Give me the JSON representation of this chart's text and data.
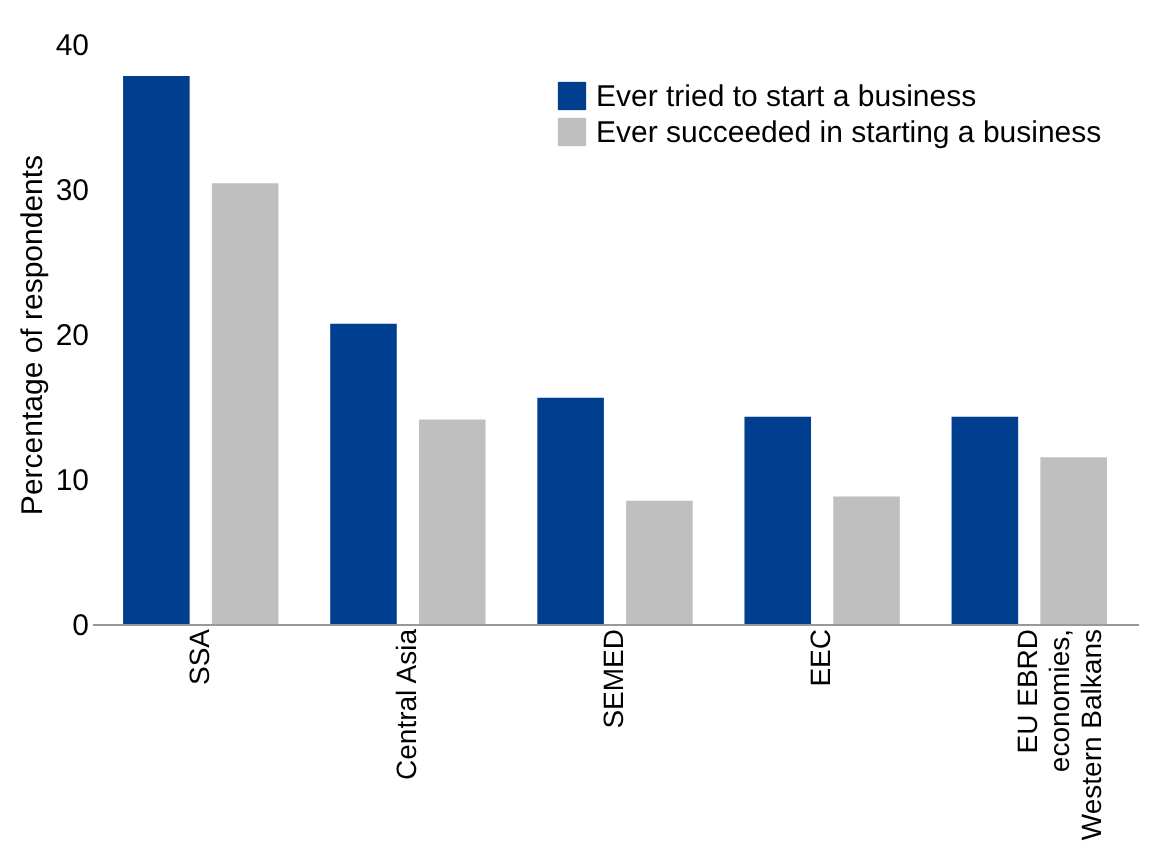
{
  "chart_data": {
    "type": "bar",
    "ylabel": "Percentage of respondents",
    "categories": [
      "SSA",
      "Central Asia",
      "SEMED",
      "EEC",
      "EU EBRD economies, Western Balkans"
    ],
    "series": [
      {
        "name": "Ever tried to start a business",
        "color": "#003f8f",
        "values": [
          37.8,
          20.7,
          15.6,
          14.3,
          14.3
        ]
      },
      {
        "name": "Ever succeeded in starting a business",
        "color": "#bfbfbf",
        "values": [
          30.4,
          14.1,
          8.5,
          8.8,
          11.5
        ]
      }
    ],
    "ylim": [
      0,
      40
    ],
    "yticks": [
      0,
      10,
      20,
      30,
      40
    ],
    "grid": false,
    "legend": "top right"
  }
}
